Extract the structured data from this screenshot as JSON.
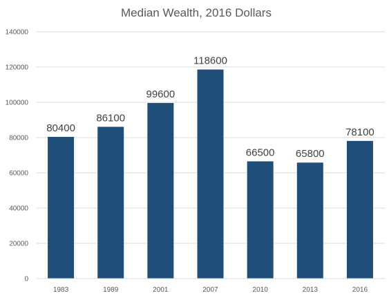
{
  "chart_data": {
    "type": "bar",
    "title": "Median Wealth, 2016 Dollars",
    "xlabel": "",
    "ylabel": "",
    "categories": [
      "1983",
      "1989",
      "2001",
      "2007",
      "2010",
      "2013",
      "2016"
    ],
    "values": [
      80400,
      86100,
      99600,
      118600,
      66500,
      65800,
      78100
    ],
    "data_labels": [
      "80400",
      "86100",
      "99600",
      "118600",
      "66500",
      "65800",
      "78100"
    ],
    "ylim": [
      0,
      140000
    ],
    "yticks": [
      0,
      20000,
      40000,
      60000,
      80000,
      100000,
      120000,
      140000
    ],
    "ytick_labels": [
      "0",
      "20000",
      "40000",
      "60000",
      "80000",
      "100000",
      "120000",
      "140000"
    ],
    "grid": true,
    "legend": "none",
    "bar_color": "#1f4e79"
  }
}
